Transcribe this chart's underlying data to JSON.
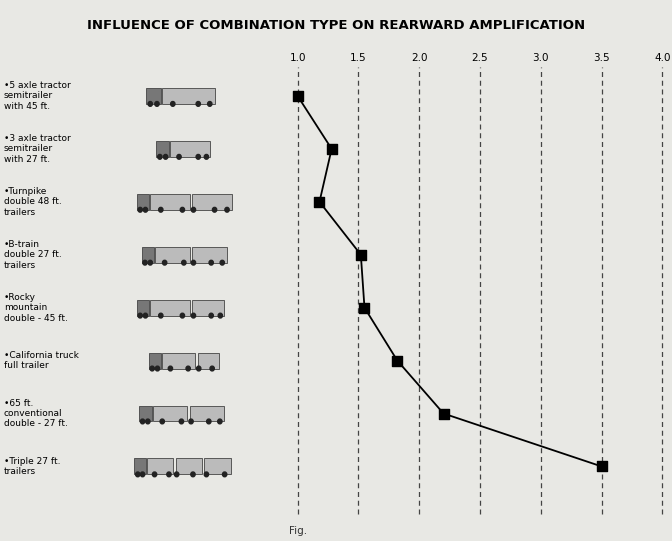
{
  "title": "INFLUENCE OF COMBINATION TYPE ON REARWARD AMPLIFICATION",
  "x_ticks": [
    1.0,
    1.5,
    2.0,
    2.5,
    3.0,
    3.5,
    4.0
  ],
  "vehicle_labels": [
    "•5 axle tractor\nsemitrailer\nwith 45 ft.",
    "•3 axle tractor\nsemitrailer\nwith 27 ft.",
    "•Turnpike\ndouble 48 ft.\ntrailers",
    "•B-train\ndouble 27 ft.\ntrailers",
    "•Rocky\nmountain\ndouble - 45 ft.",
    "•California truck\nfull trailer",
    "•65 ft.\nconventional\ndouble - 27 ft.",
    "•Triple 27 ft.\ntrailers"
  ],
  "data_x": [
    1.0,
    1.28,
    1.18,
    1.52,
    1.55,
    1.82,
    2.2,
    3.5
  ],
  "background_color": "#e8e8e4",
  "line_color": "#000000",
  "marker_color": "#000000",
  "title_fontsize": 9.5,
  "label_fontsize": 6.5,
  "axis_tick_fontsize": 7.5,
  "fig_caption": "Fig.",
  "n_rows": 8
}
